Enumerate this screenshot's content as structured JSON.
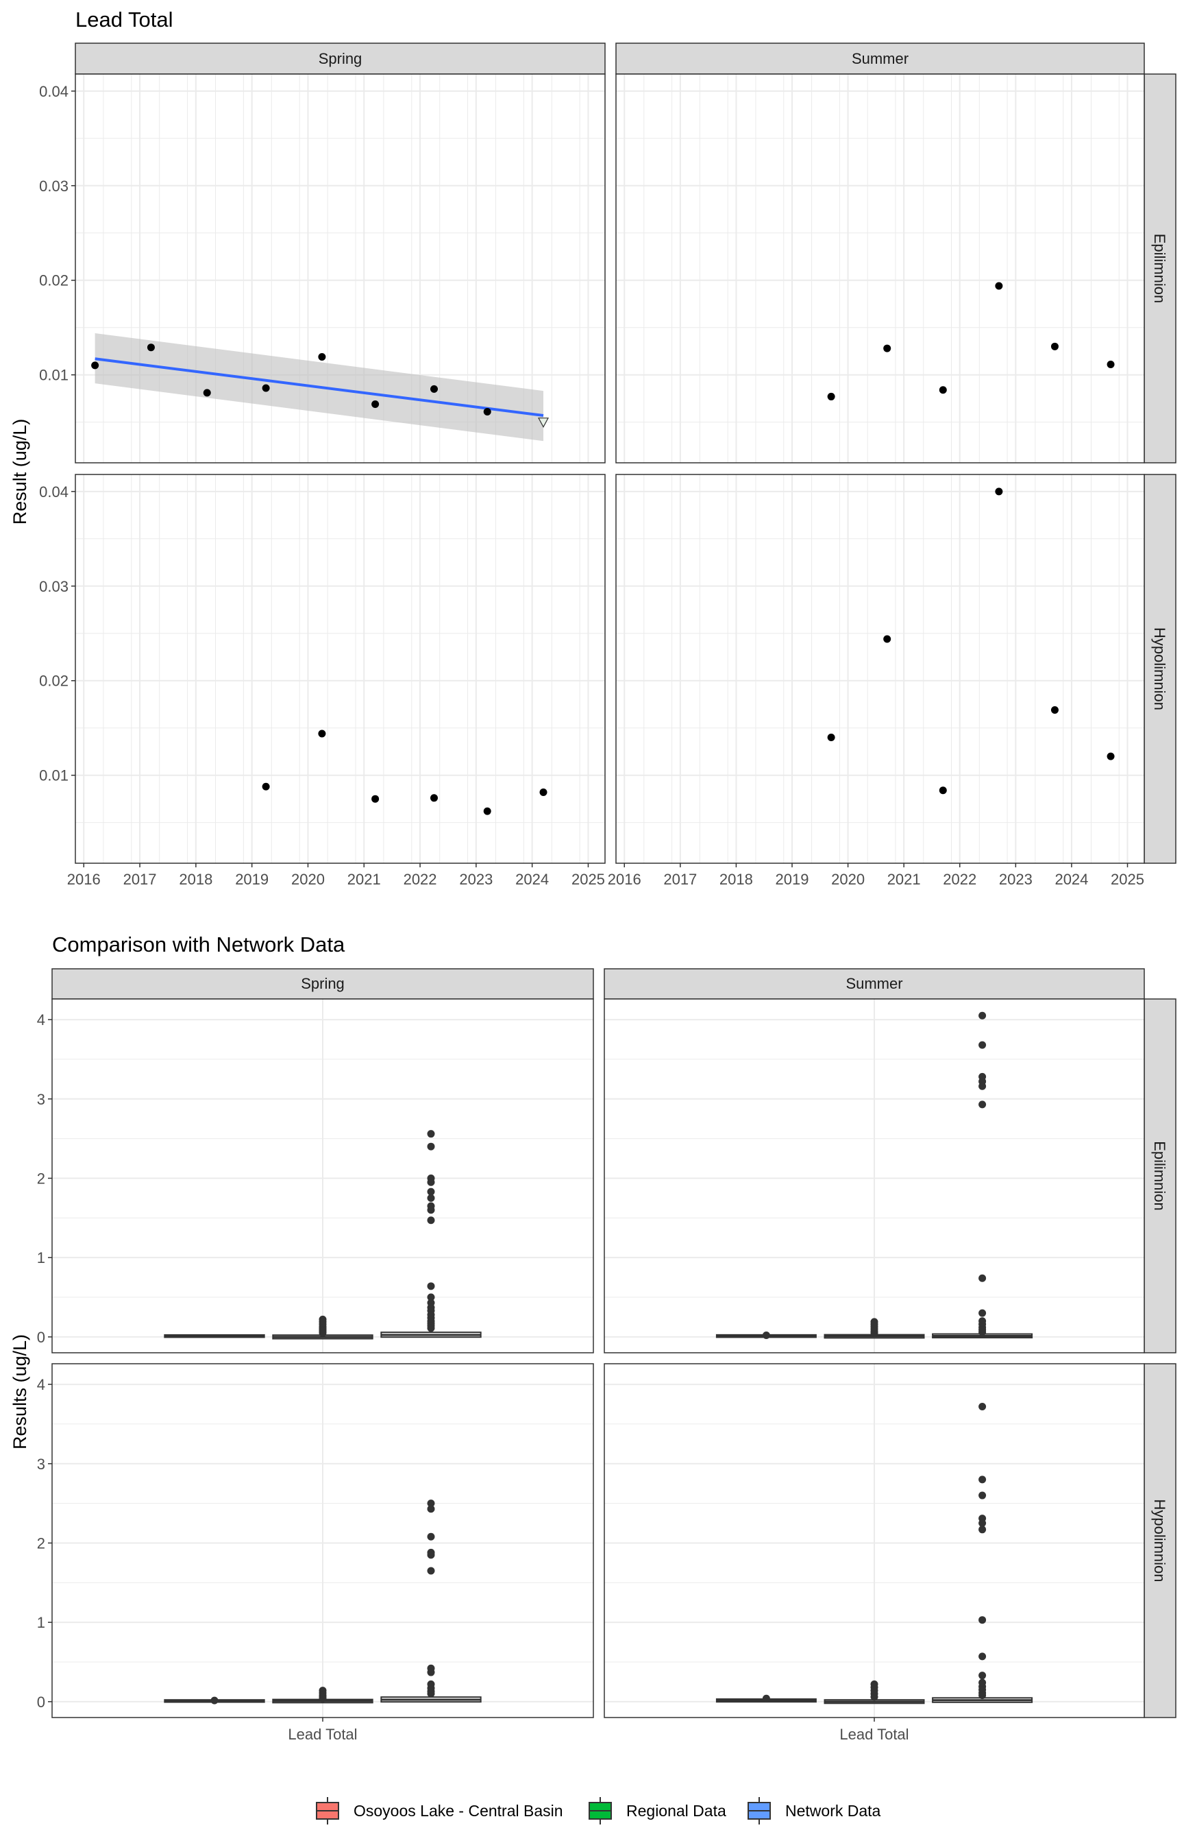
{
  "colors": {
    "point": "#000000",
    "trend_line": "#3366FF",
    "confidence_band": "#BEBEBE",
    "strip_fill": "#D9D9D9",
    "grid": "#EBEBEB",
    "box": "#333333",
    "below_detection_marker": "#E6F0E6"
  },
  "chart_data": [
    {
      "type": "scatter",
      "title": "Lead Total",
      "ylabel": "Result (ug/L)",
      "xlabel": "",
      "col_facets": [
        "Spring",
        "Summer"
      ],
      "row_facets": [
        "Epilimnion",
        "Hypolimnion"
      ],
      "xlim": [
        2015.85,
        2025.3
      ],
      "ylim": [
        0.0007,
        0.0418
      ],
      "x_ticks": [
        2016,
        2017,
        2018,
        2019,
        2020,
        2021,
        2022,
        2023,
        2024,
        2025
      ],
      "y_ticks": [
        0.01,
        0.02,
        0.03,
        0.04
      ],
      "y_tick_labels": [
        "0.01",
        "0.02",
        "0.03",
        "0.04"
      ],
      "grid": true,
      "panels": [
        {
          "col": "Spring",
          "row": "Epilimnion",
          "points": [
            {
              "x": 2016.2,
              "y": 0.011
            },
            {
              "x": 2017.2,
              "y": 0.0129
            },
            {
              "x": 2018.2,
              "y": 0.0081
            },
            {
              "x": 2019.25,
              "y": 0.0086
            },
            {
              "x": 2020.25,
              "y": 0.0119
            },
            {
              "x": 2021.2,
              "y": 0.0069
            },
            {
              "x": 2022.25,
              "y": 0.0085
            },
            {
              "x": 2023.2,
              "y": 0.0061
            }
          ],
          "below_detection": [
            {
              "x": 2024.2,
              "y": 0.005
            }
          ],
          "trend": {
            "x": [
              2016.2,
              2024.2
            ],
            "y": [
              0.0117,
              0.0057
            ]
          },
          "band": {
            "x": [
              2016.2,
              2024.2
            ],
            "upper": [
              0.0144,
              0.0083
            ],
            "lower": [
              0.0091,
              0.003
            ]
          }
        },
        {
          "col": "Summer",
          "row": "Epilimnion",
          "points": [
            {
              "x": 2019.7,
              "y": 0.0077
            },
            {
              "x": 2020.7,
              "y": 0.0128
            },
            {
              "x": 2021.7,
              "y": 0.0084
            },
            {
              "x": 2022.7,
              "y": 0.0194
            },
            {
              "x": 2023.7,
              "y": 0.013
            },
            {
              "x": 2024.7,
              "y": 0.0111
            }
          ]
        },
        {
          "col": "Spring",
          "row": "Hypolimnion",
          "points": [
            {
              "x": 2019.25,
              "y": 0.0088
            },
            {
              "x": 2020.25,
              "y": 0.0144
            },
            {
              "x": 2021.2,
              "y": 0.0075
            },
            {
              "x": 2022.25,
              "y": 0.0076
            },
            {
              "x": 2023.2,
              "y": 0.0062
            },
            {
              "x": 2024.2,
              "y": 0.0082
            }
          ]
        },
        {
          "col": "Summer",
          "row": "Hypolimnion",
          "points": [
            {
              "x": 2019.7,
              "y": 0.014
            },
            {
              "x": 2020.7,
              "y": 0.0244
            },
            {
              "x": 2021.7,
              "y": 0.0084
            },
            {
              "x": 2022.7,
              "y": 0.04
            },
            {
              "x": 2023.7,
              "y": 0.0169
            },
            {
              "x": 2024.7,
              "y": 0.012
            }
          ]
        }
      ]
    },
    {
      "type": "box",
      "title": "Comparison with Network Data",
      "ylabel": "Results (ug/L)",
      "xlabel": "Lead Total",
      "categories": [
        "Lead Total"
      ],
      "col_facets": [
        "Spring",
        "Summer"
      ],
      "row_facets": [
        "Epilimnion",
        "Hypolimnion"
      ],
      "ylim": [
        -0.2,
        4.26
      ],
      "y_ticks": [
        0,
        1,
        2,
        3,
        4
      ],
      "y_tick_labels": [
        "0",
        "1",
        "2",
        "3",
        "4"
      ],
      "grid": true,
      "legend": {
        "position": "bottom",
        "entries": [
          {
            "label": "Osoyoos Lake - Central Basin",
            "color": "#F8766D"
          },
          {
            "label": "Regional Data",
            "color": "#00BA38"
          },
          {
            "label": "Network Data",
            "color": "#619CFF"
          }
        ]
      },
      "panels": [
        {
          "col": "Spring",
          "row": "Epilimnion",
          "groups": [
            {
              "name": "Osoyoos Lake - Central Basin",
              "q1": 0.008,
              "median": 0.01,
              "q3": 0.012,
              "outliers": []
            },
            {
              "name": "Regional Data",
              "q1": -0.01,
              "median": 0.0,
              "q3": 0.01,
              "outliers": [
                0.22,
                0.19,
                0.16,
                0.13,
                0.11,
                0.09,
                0.07,
                0.05
              ]
            },
            {
              "name": "Network Data",
              "q1": 0.01,
              "median": 0.025,
              "q3": 0.045,
              "outliers": [
                2.56,
                2.4,
                2.0,
                1.95,
                1.83,
                1.75,
                1.65,
                1.6,
                1.47,
                0.64,
                0.5,
                0.43,
                0.37,
                0.33,
                0.28,
                0.24,
                0.2,
                0.17,
                0.14,
                0.11
              ]
            }
          ]
        },
        {
          "col": "Summer",
          "row": "Epilimnion",
          "groups": [
            {
              "name": "Osoyoos Lake - Central Basin",
              "q1": 0.008,
              "median": 0.011,
              "q3": 0.013,
              "outliers": [
                0.02
              ]
            },
            {
              "name": "Regional Data",
              "q1": 0.0,
              "median": 0.008,
              "q3": 0.015,
              "outliers": [
                0.19,
                0.16,
                0.13,
                0.1,
                0.07,
                0.05
              ]
            },
            {
              "name": "Network Data",
              "q1": 0.003,
              "median": 0.012,
              "q3": 0.024,
              "outliers": [
                4.05,
                3.68,
                3.28,
                3.22,
                3.16,
                2.93,
                0.74,
                0.3,
                0.2,
                0.16,
                0.12,
                0.09,
                0.06
              ]
            }
          ]
        },
        {
          "col": "Spring",
          "row": "Hypolimnion",
          "groups": [
            {
              "name": "Osoyoos Lake - Central Basin",
              "q1": 0.007,
              "median": 0.008,
              "q3": 0.01,
              "outliers": [
                0.015
              ]
            },
            {
              "name": "Regional Data",
              "q1": 0.0,
              "median": 0.008,
              "q3": 0.015,
              "outliers": [
                0.14,
                0.11,
                0.08,
                0.06,
                0.04
              ]
            },
            {
              "name": "Network Data",
              "q1": 0.01,
              "median": 0.025,
              "q3": 0.045,
              "outliers": [
                2.5,
                2.43,
                2.08,
                1.88,
                1.85,
                1.65,
                0.42,
                0.37,
                0.22,
                0.17,
                0.13,
                0.1
              ]
            }
          ]
        },
        {
          "col": "Summer",
          "row": "Hypolimnion",
          "groups": [
            {
              "name": "Osoyoos Lake - Central Basin",
              "q1": 0.01,
              "median": 0.015,
              "q3": 0.02,
              "outliers": [
                0.04
              ]
            },
            {
              "name": "Regional Data",
              "q1": -0.008,
              "median": 0.0,
              "q3": 0.01,
              "outliers": [
                0.22,
                0.18,
                0.14,
                0.1,
                0.06
              ]
            },
            {
              "name": "Network Data",
              "q1": 0.005,
              "median": 0.018,
              "q3": 0.035,
              "outliers": [
                3.72,
                2.8,
                2.6,
                2.31,
                2.25,
                2.17,
                1.03,
                0.57,
                0.33,
                0.24,
                0.19,
                0.15,
                0.11,
                0.08
              ]
            }
          ]
        }
      ]
    }
  ]
}
